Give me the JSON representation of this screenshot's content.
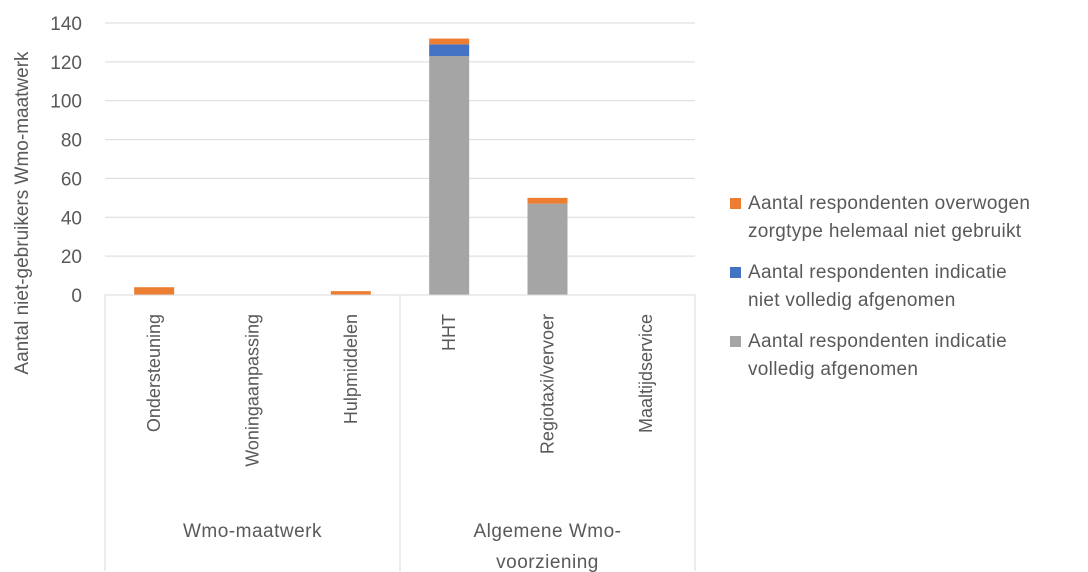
{
  "chart_data": {
    "type": "bar",
    "stacked": true,
    "ylabel": "Aantal niet-gebruikers  Wmo-maatwerk",
    "xlabel": "",
    "ylim": [
      0,
      140
    ],
    "yticks": [
      0,
      20,
      40,
      60,
      80,
      100,
      120,
      140
    ],
    "grid": true,
    "legend_position": "right",
    "categories": [
      "Ondersteuning",
      "Woningaanpassing",
      "Hulpmiddelen",
      "HHT",
      "Regiotaxi/vervoer",
      "Maaltijdservice"
    ],
    "groups": [
      {
        "label": "Wmo-maatwerk",
        "categories": [
          "Ondersteuning",
          "Woningaanpassing",
          "Hulpmiddelen"
        ]
      },
      {
        "label": "Algemene Wmo-voorziening",
        "label_lines": [
          "Algemene Wmo-",
          "voorziening"
        ],
        "categories": [
          "HHT",
          "Regiotaxi/vervoer",
          "Maaltijdservice"
        ]
      }
    ],
    "series": [
      {
        "name": "Aantal respondenten indicatie volledig afgenomen",
        "name_lines": [
          "Aantal respondenten indicatie",
          "volledig afgenomen"
        ],
        "color": "#a5a5a5",
        "values": [
          0,
          0,
          0,
          123,
          47,
          0
        ]
      },
      {
        "name": "Aantal respondenten indicatie niet volledig afgenomen",
        "name_lines": [
          "Aantal respondenten indicatie",
          "niet volledig afgenomen"
        ],
        "color": "#4472c4",
        "values": [
          0,
          0,
          0,
          6,
          0,
          0
        ]
      },
      {
        "name": "Aantal respondenten overwogen zorgtype helemaal niet gebruikt",
        "name_lines": [
          "Aantal respondenten overwogen",
          "zorgtype helemaal niet gebruikt"
        ],
        "color": "#ed7d31",
        "values": [
          4,
          0,
          2,
          3,
          3,
          0
        ]
      }
    ],
    "legend_order": [
      2,
      1,
      0
    ]
  }
}
